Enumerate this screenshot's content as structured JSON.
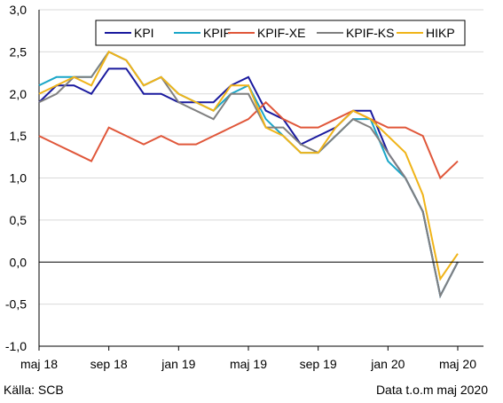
{
  "chart_data": {
    "type": "line",
    "title": "",
    "xlabel": "",
    "ylabel": "",
    "ylim": [
      -1.0,
      3.0
    ],
    "yticks": [
      "3,0",
      "2,5",
      "2,0",
      "1,5",
      "1,0",
      "0,5",
      "0,0",
      "-0,5",
      "-1,0"
    ],
    "ytick_values": [
      3.0,
      2.5,
      2.0,
      1.5,
      1.0,
      0.5,
      0.0,
      -0.5,
      -1.0
    ],
    "x": [
      "2018-05",
      "2018-06",
      "2018-07",
      "2018-08",
      "2018-09",
      "2018-10",
      "2018-11",
      "2018-12",
      "2019-01",
      "2019-02",
      "2019-03",
      "2019-04",
      "2019-05",
      "2019-06",
      "2019-07",
      "2019-08",
      "2019-09",
      "2019-10",
      "2019-11",
      "2019-12",
      "2020-01",
      "2020-02",
      "2020-03",
      "2020-04",
      "2020-05"
    ],
    "xtick_labels": [
      "maj 18",
      "sep 18",
      "jan 19",
      "maj 19",
      "sep 19",
      "jan 20",
      "maj 20"
    ],
    "xtick_positions": [
      "2018-05",
      "2018-09",
      "2019-01",
      "2019-05",
      "2019-09",
      "2020-01",
      "2020-05"
    ],
    "grid": "horizontal",
    "zero_line": true,
    "legend_position": "top-right",
    "series": [
      {
        "name": "KPI",
        "color": "#1a1a9e",
        "values": [
          1.9,
          2.1,
          2.1,
          2.0,
          2.3,
          2.3,
          2.0,
          2.0,
          1.9,
          1.9,
          1.9,
          2.1,
          2.2,
          1.8,
          1.7,
          1.4,
          1.5,
          1.6,
          1.8,
          1.8,
          1.3,
          1.0,
          0.6,
          -0.4,
          0.0
        ]
      },
      {
        "name": "KPIF",
        "color": "#1aa6c8",
        "values": [
          2.1,
          2.2,
          2.2,
          2.2,
          2.5,
          2.4,
          2.1,
          2.2,
          2.0,
          1.9,
          1.8,
          2.0,
          2.1,
          1.7,
          1.5,
          1.3,
          1.3,
          1.5,
          1.7,
          1.7,
          1.2,
          1.0,
          0.6,
          -0.4,
          0.0
        ]
      },
      {
        "name": "KPIF-XE",
        "color": "#e0573a",
        "values": [
          1.5,
          1.4,
          1.3,
          1.2,
          1.6,
          1.5,
          1.4,
          1.5,
          1.4,
          1.4,
          1.5,
          1.6,
          1.7,
          1.9,
          1.7,
          1.6,
          1.6,
          1.7,
          1.8,
          1.7,
          1.6,
          1.6,
          1.5,
          1.0,
          1.2
        ]
      },
      {
        "name": "KPIF-KS",
        "color": "#808080",
        "values": [
          1.9,
          2.0,
          2.2,
          2.2,
          2.5,
          2.4,
          2.1,
          2.2,
          1.9,
          1.8,
          1.7,
          2.0,
          2.0,
          1.6,
          1.6,
          1.4,
          1.3,
          1.5,
          1.7,
          1.6,
          1.3,
          1.0,
          0.6,
          -0.4,
          0.0
        ]
      },
      {
        "name": "HIKP",
        "color": "#f0b419",
        "values": [
          2.0,
          2.1,
          2.2,
          2.1,
          2.5,
          2.4,
          2.1,
          2.2,
          2.0,
          1.9,
          1.8,
          2.1,
          2.1,
          1.6,
          1.5,
          1.3,
          1.3,
          1.6,
          1.8,
          1.7,
          1.5,
          1.3,
          0.8,
          -0.2,
          0.1
        ]
      }
    ]
  },
  "footer": {
    "source": "Källa: SCB",
    "data_note": "Data t.o.m maj 2020"
  }
}
